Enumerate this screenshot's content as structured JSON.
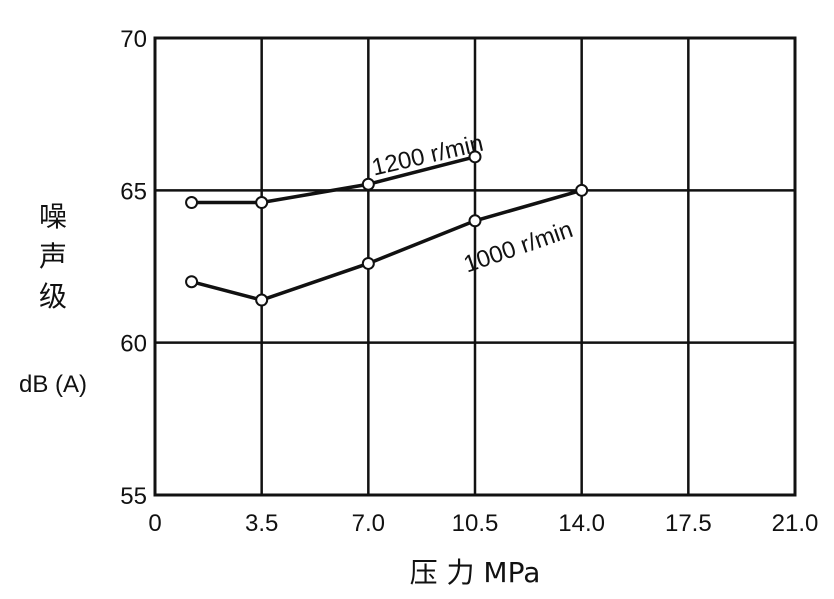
{
  "chart_data": {
    "type": "line",
    "x_ticks": [
      "0",
      "3.5",
      "7.0",
      "10.5",
      "14.0",
      "17.5",
      "21.0"
    ],
    "y_ticks": [
      "55",
      "60",
      "65",
      "70"
    ],
    "xlim": [
      0,
      21
    ],
    "ylim": [
      55,
      70
    ],
    "grid": true,
    "xlabel": "压 力 MPa",
    "ylabel_chars": [
      "噪",
      "声",
      "级"
    ],
    "ylabel_unit": "dB (A)",
    "series": [
      {
        "name": "1200 r/min",
        "x": [
          1.2,
          3.5,
          7.0,
          10.5
        ],
        "y": [
          64.6,
          64.6,
          65.2,
          66.1
        ]
      },
      {
        "name": "1000 r/min",
        "x": [
          1.2,
          3.5,
          7.0,
          10.5,
          14.0
        ],
        "y": [
          62.0,
          61.4,
          62.6,
          64.0,
          65.0
        ]
      }
    ]
  }
}
